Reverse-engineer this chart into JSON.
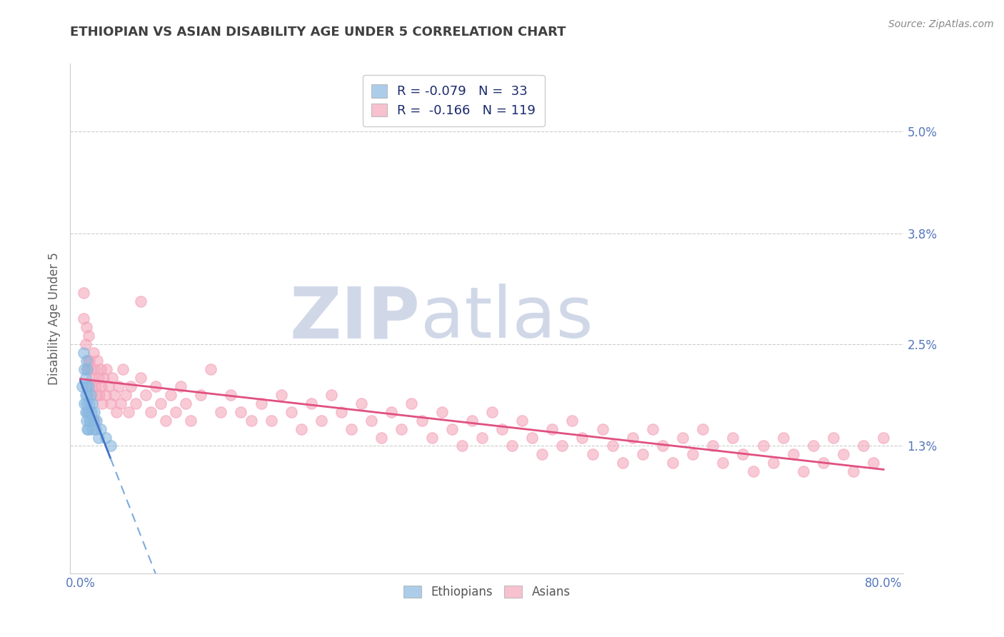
{
  "title": "ETHIOPIAN VS ASIAN DISABILITY AGE UNDER 5 CORRELATION CHART",
  "source": "Source: ZipAtlas.com",
  "ylabel": "Disability Age Under 5",
  "xlim": [
    -0.01,
    0.82
  ],
  "ylim": [
    -0.002,
    0.058
  ],
  "xticks": [
    0.0,
    0.8
  ],
  "xticklabels": [
    "0.0%",
    "80.0%"
  ],
  "yticks": [
    0.013,
    0.025,
    0.038,
    0.05
  ],
  "yticklabels": [
    "1.3%",
    "2.5%",
    "3.8%",
    "5.0%"
  ],
  "ethiopian_color": "#89b8e0",
  "asian_color": "#f4a7bc",
  "trendline_ethiopian_solid_color": "#4472c4",
  "trendline_asian_solid_color": "#e05080",
  "trendline_ethiopian_dash_color": "#7aabdd",
  "background_color": "#ffffff",
  "grid_color": "#cccccc",
  "title_color": "#404040",
  "axis_label_color": "#606060",
  "tick_label_color": "#5577bb",
  "watermark_color": "#d0d8e8",
  "ethiopian_scatter_x": [
    0.002,
    0.003,
    0.004,
    0.004,
    0.005,
    0.005,
    0.005,
    0.006,
    0.006,
    0.006,
    0.006,
    0.007,
    0.007,
    0.007,
    0.007,
    0.008,
    0.008,
    0.008,
    0.009,
    0.009,
    0.01,
    0.01,
    0.011,
    0.012,
    0.012,
    0.013,
    0.014,
    0.015,
    0.016,
    0.018,
    0.02,
    0.025,
    0.03
  ],
  "ethiopian_scatter_y": [
    0.02,
    0.024,
    0.022,
    0.018,
    0.021,
    0.019,
    0.017,
    0.023,
    0.02,
    0.018,
    0.016,
    0.022,
    0.019,
    0.017,
    0.015,
    0.02,
    0.017,
    0.015,
    0.018,
    0.016,
    0.019,
    0.016,
    0.017,
    0.018,
    0.015,
    0.016,
    0.017,
    0.015,
    0.016,
    0.014,
    0.015,
    0.014,
    0.013
  ],
  "asian_scatter_x": [
    0.003,
    0.005,
    0.007,
    0.008,
    0.009,
    0.01,
    0.012,
    0.013,
    0.014,
    0.015,
    0.016,
    0.017,
    0.018,
    0.019,
    0.02,
    0.021,
    0.022,
    0.023,
    0.025,
    0.026,
    0.028,
    0.03,
    0.032,
    0.034,
    0.036,
    0.038,
    0.04,
    0.042,
    0.045,
    0.048,
    0.05,
    0.055,
    0.06,
    0.065,
    0.07,
    0.075,
    0.08,
    0.085,
    0.09,
    0.095,
    0.1,
    0.105,
    0.11,
    0.12,
    0.13,
    0.14,
    0.15,
    0.16,
    0.17,
    0.18,
    0.19,
    0.2,
    0.21,
    0.22,
    0.23,
    0.24,
    0.25,
    0.26,
    0.27,
    0.28,
    0.29,
    0.3,
    0.31,
    0.32,
    0.33,
    0.34,
    0.35,
    0.36,
    0.37,
    0.38,
    0.39,
    0.4,
    0.41,
    0.42,
    0.43,
    0.44,
    0.45,
    0.46,
    0.47,
    0.48,
    0.49,
    0.5,
    0.51,
    0.52,
    0.53,
    0.54,
    0.55,
    0.56,
    0.57,
    0.58,
    0.59,
    0.6,
    0.61,
    0.62,
    0.63,
    0.64,
    0.65,
    0.66,
    0.67,
    0.68,
    0.69,
    0.7,
    0.71,
    0.72,
    0.73,
    0.74,
    0.75,
    0.76,
    0.77,
    0.78,
    0.79,
    0.8,
    0.003,
    0.006,
    0.008,
    0.011,
    0.014,
    0.06
  ],
  "asian_scatter_y": [
    0.028,
    0.025,
    0.022,
    0.026,
    0.023,
    0.022,
    0.021,
    0.024,
    0.022,
    0.02,
    0.019,
    0.023,
    0.021,
    0.019,
    0.022,
    0.02,
    0.018,
    0.021,
    0.019,
    0.022,
    0.02,
    0.018,
    0.021,
    0.019,
    0.017,
    0.02,
    0.018,
    0.022,
    0.019,
    0.017,
    0.02,
    0.018,
    0.021,
    0.019,
    0.017,
    0.02,
    0.018,
    0.016,
    0.019,
    0.017,
    0.02,
    0.018,
    0.016,
    0.019,
    0.022,
    0.017,
    0.019,
    0.017,
    0.016,
    0.018,
    0.016,
    0.019,
    0.017,
    0.015,
    0.018,
    0.016,
    0.019,
    0.017,
    0.015,
    0.018,
    0.016,
    0.014,
    0.017,
    0.015,
    0.018,
    0.016,
    0.014,
    0.017,
    0.015,
    0.013,
    0.016,
    0.014,
    0.017,
    0.015,
    0.013,
    0.016,
    0.014,
    0.012,
    0.015,
    0.013,
    0.016,
    0.014,
    0.012,
    0.015,
    0.013,
    0.011,
    0.014,
    0.012,
    0.015,
    0.013,
    0.011,
    0.014,
    0.012,
    0.015,
    0.013,
    0.011,
    0.014,
    0.012,
    0.01,
    0.013,
    0.011,
    0.014,
    0.012,
    0.01,
    0.013,
    0.011,
    0.014,
    0.012,
    0.01,
    0.013,
    0.011,
    0.014,
    0.031,
    0.027,
    0.023,
    0.02,
    0.016,
    0.03
  ]
}
